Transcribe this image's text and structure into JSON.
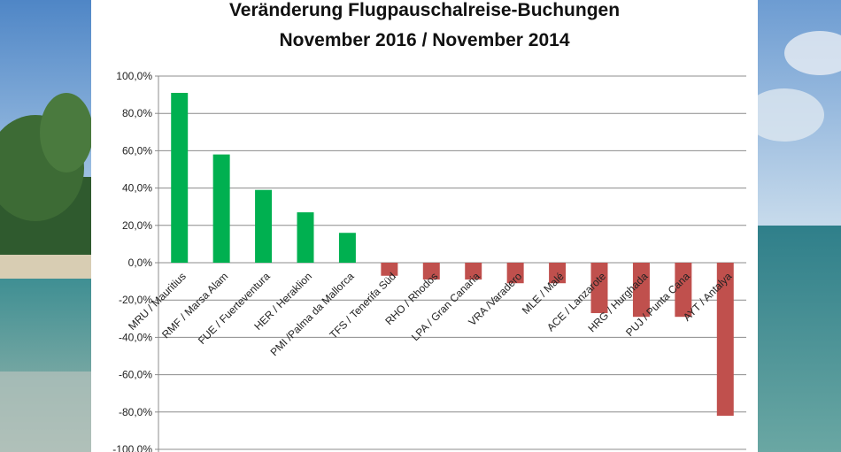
{
  "chart_data": {
    "type": "bar",
    "title_lines": [
      "Veränderung Flugpauschalreise-Buchungen",
      "November 2016 / November 2014"
    ],
    "xlabel": "",
    "ylabel": "",
    "ylim": [
      -100,
      100
    ],
    "ytick_step": 20,
    "ytick_labels": [
      "100,0%",
      "80,0%",
      "60,0%",
      "40,0%",
      "20,0%",
      "0,0%",
      "-20,0%",
      "-40,0%",
      "-60,0%",
      "-80,0%",
      "-100,0%"
    ],
    "grid": true,
    "legend": "none",
    "categories": [
      "MRU / Mauritius",
      "RMF / Marsa Alam",
      "FUE / Fuerteventura",
      "HER / Heraklion",
      "PMI /Palma da Mallorca",
      "TFS / Tenerifa Süd",
      "RHO / Rhodos",
      "LPA / Gran Canaria",
      "VRA /Varadero",
      "MLE / Malé",
      "ACE / Lanzarote",
      "HRG / Hurghada",
      "PUJ / Punta Cana",
      "AYT / Antalya"
    ],
    "values": [
      91,
      58,
      39,
      27,
      16,
      -7,
      -9,
      -9,
      -11,
      -11,
      -27,
      -29,
      -29,
      -82
    ],
    "colors": {
      "positive": "#00b050",
      "negative": "#c0504d"
    }
  }
}
